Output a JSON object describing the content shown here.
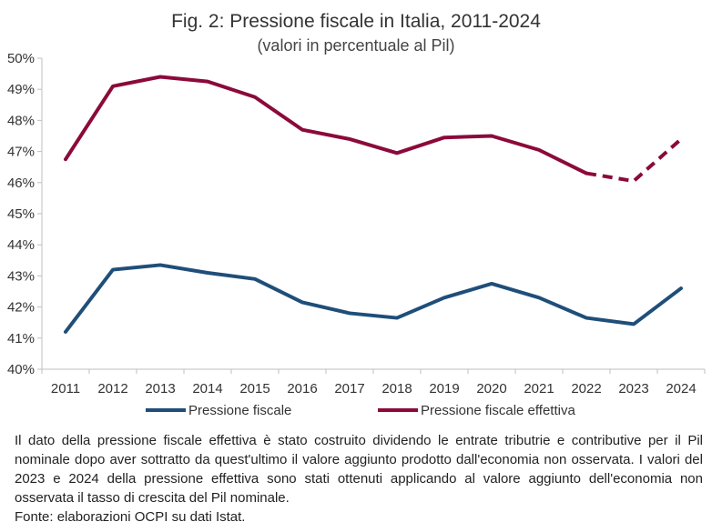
{
  "chart_data": {
    "type": "line",
    "title": "Fig. 2: Pressione fiscale in Italia, 2011-2024",
    "subtitle": "(valori in percentuale al Pil)",
    "xlabel": "",
    "ylabel": "",
    "x": [
      "2011",
      "2012",
      "2013",
      "2014",
      "2015",
      "2016",
      "2017",
      "2018",
      "2019",
      "2020",
      "2021",
      "2022",
      "2023",
      "2024"
    ],
    "ylim": [
      40,
      50
    ],
    "yticks": [
      "40%",
      "41%",
      "42%",
      "43%",
      "44%",
      "45%",
      "46%",
      "47%",
      "48%",
      "49%",
      "50%"
    ],
    "grid": false,
    "legend": "bottom",
    "series": [
      {
        "name": "Pressione fiscale",
        "color": "#1f4e79",
        "values": [
          41.2,
          43.2,
          43.35,
          43.1,
          42.9,
          42.15,
          41.8,
          41.65,
          42.3,
          42.75,
          42.3,
          41.65,
          41.45,
          42.6
        ]
      },
      {
        "name": "Pressione fiscale effettiva",
        "color": "#8b0a3a",
        "values": [
          46.75,
          49.1,
          49.4,
          49.25,
          48.75,
          47.7,
          47.4,
          46.95,
          47.45,
          47.5,
          47.05,
          46.3,
          46.05,
          47.4
        ],
        "dashed_from": "2022"
      }
    ]
  },
  "note": {
    "paragraph": "Il dato della pressione fiscale effettiva è stato costruito dividendo le entrate tributrie e contributive per il Pil nominale dopo aver sottratto da quest'ultimo il valore aggiunto prodotto dall'economia non osservata. I valori del 2023 e 2024 della pressione effettiva sono stati ottenuti applicando al valore aggiunto dell'economia non osservata il tasso di crescita del Pil nominale.",
    "source": "Fonte: elaborazioni OCPI su dati Istat."
  },
  "colors": {
    "axis": "#bfbfbf",
    "text": "#333333"
  }
}
